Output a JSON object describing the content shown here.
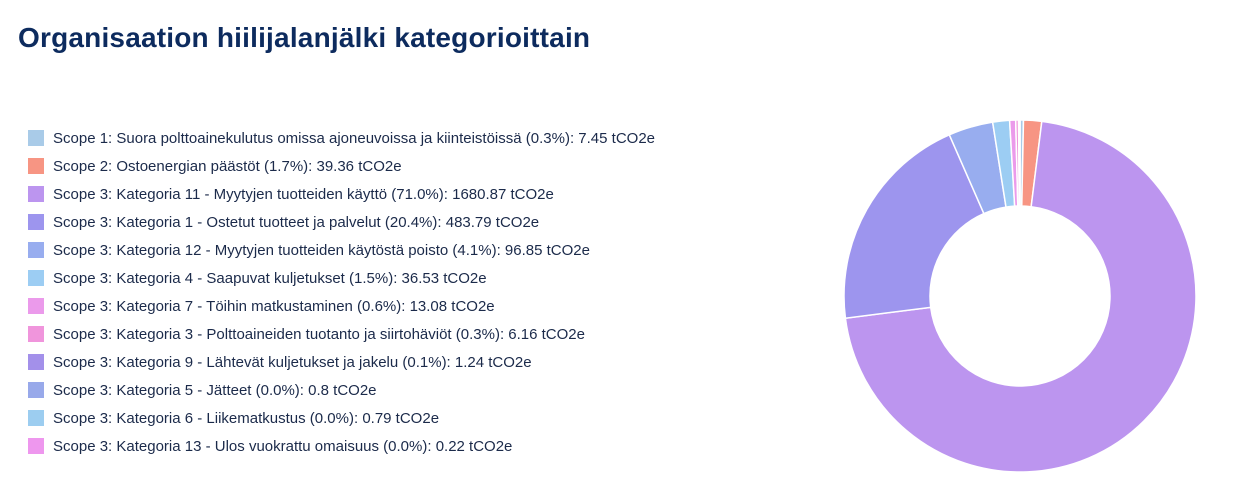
{
  "title": "Organisaation hiilijalanjälki kategorioittain",
  "chart_data": {
    "type": "pie",
    "donut": true,
    "title": "Organisaation hiilijalanjälki kategorioittain",
    "unit": "tCO2e",
    "legend_position": "left",
    "series": [
      {
        "name": "Scope 1: Suora polttoainekulutus omissa ajoneuvoissa ja kiinteistöissä",
        "percent": "0.3%",
        "value": 7.45,
        "color": "#a9cbe8",
        "label": "Scope 1: Suora polttoainekulutus omissa ajoneuvoissa ja kiinteistöissä (0.3%): 7.45 tCO2e"
      },
      {
        "name": "Scope 2: Ostoenergian päästöt",
        "percent": "1.7%",
        "value": 39.36,
        "color": "#f79583",
        "label": "Scope 2: Ostoenergian päästöt (1.7%): 39.36 tCO2e"
      },
      {
        "name": "Scope 3: Kategoria 11 - Myytyjen tuotteiden käyttö",
        "percent": "71.0%",
        "value": 1680.87,
        "color": "#bc95ef",
        "label": "Scope 3: Kategoria 11 - Myytyjen tuotteiden käyttö (71.0%): 1680.87 tCO2e"
      },
      {
        "name": "Scope 3: Kategoria 1 - Ostetut tuotteet ja palvelut",
        "percent": "20.4%",
        "value": 483.79,
        "color": "#9d95ee",
        "label": "Scope 3: Kategoria 1 - Ostetut tuotteet ja palvelut (20.4%): 483.79 tCO2e"
      },
      {
        "name": "Scope 3: Kategoria 12 - Myytyjen tuotteiden käytöstä poisto",
        "percent": "4.1%",
        "value": 96.85,
        "color": "#98adef",
        "label": "Scope 3: Kategoria 12 - Myytyjen tuotteiden käytöstä poisto (4.1%): 96.85 tCO2e"
      },
      {
        "name": "Scope 3: Kategoria 4 - Saapuvat kuljetukset",
        "percent": "1.5%",
        "value": 36.53,
        "color": "#9ccdf3",
        "label": "Scope 3: Kategoria 4 - Saapuvat kuljetukset (1.5%): 36.53 tCO2e"
      },
      {
        "name": "Scope 3: Kategoria 7 - Töihin matkustaminen",
        "percent": "0.6%",
        "value": 13.08,
        "color": "#eb9aeb",
        "label": "Scope 3: Kategoria 7 - Töihin matkustaminen (0.6%): 13.08 tCO2e"
      },
      {
        "name": "Scope 3: Kategoria 3 - Polttoaineiden tuotanto ja siirtohäviöt",
        "percent": "0.3%",
        "value": 6.16,
        "color": "#f095dc",
        "label": "Scope 3: Kategoria 3 - Polttoaineiden tuotanto ja siirtohäviöt (0.3%): 6.16 tCO2e"
      },
      {
        "name": "Scope 3: Kategoria 9 - Lähtevät kuljetukset ja jakelu",
        "percent": "0.1%",
        "value": 1.24,
        "color": "#a390ea",
        "label": "Scope 3: Kategoria 9 - Lähtevät kuljetukset ja jakelu (0.1%): 1.24 tCO2e"
      },
      {
        "name": "Scope 3: Kategoria 5 - Jätteet",
        "percent": "0.0%",
        "value": 0.8,
        "color": "#98a9ea",
        "label": "Scope 3: Kategoria 5 - Jätteet  (0.0%): 0.8 tCO2e"
      },
      {
        "name": "Scope 3: Kategoria 6 - Liikematkustus",
        "percent": "0.0%",
        "value": 0.79,
        "color": "#9ccdf0",
        "label": "Scope 3: Kategoria 6 - Liikematkustus (0.0%): 0.79 tCO2e"
      },
      {
        "name": "Scope 3: Kategoria 13 - Ulos vuokrattu omaisuus",
        "percent": "0.0%",
        "value": 0.22,
        "color": "#ee97ee",
        "label": "Scope 3: Kategoria 13 - Ulos vuokrattu omaisuus (0.0%): 0.22 tCO2e"
      }
    ]
  }
}
